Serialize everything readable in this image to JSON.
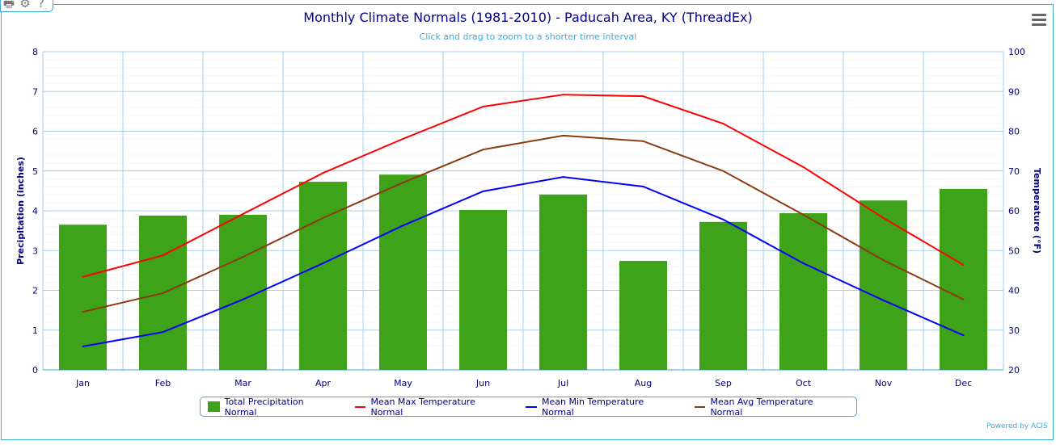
{
  "toolbar": {
    "icons": [
      "printer-icon",
      "gear-icon",
      "help-icon"
    ],
    "print": "🖶",
    "settings": "⚙",
    "help": "?"
  },
  "credit": "Powered by ACIS",
  "colors": {
    "precip": "#3fa31a",
    "max": "#ff0000",
    "min": "#0000ff",
    "avg": "#8b3a0f",
    "axis_text": "#000080",
    "grid": "#a6cfe8",
    "accent": "#3fa9de"
  },
  "chart_data": {
    "type": "bar+line",
    "title": "Monthly Climate Normals (1981-2010) - Paducah Area, KY (ThreadEx)",
    "subtitle": "Click and drag to zoom to a shorter time interval",
    "categories": [
      "Jan",
      "Feb",
      "Mar",
      "Apr",
      "May",
      "Jun",
      "Jul",
      "Aug",
      "Sep",
      "Oct",
      "Nov",
      "Dec"
    ],
    "y_left": {
      "label": "Precipitation (inches)",
      "range": [
        0,
        8
      ],
      "ticks": [
        "0",
        "1",
        "2",
        "3",
        "4",
        "5",
        "6",
        "7",
        "8"
      ]
    },
    "y_right": {
      "label": "Temperature (°F)",
      "range": [
        20,
        100
      ],
      "ticks": [
        "20",
        "30",
        "40",
        "50",
        "60",
        "70",
        "80",
        "90",
        "100"
      ]
    },
    "grid": true,
    "legend_placement": "bottom",
    "series": [
      {
        "name": "Total Precipitation Normal",
        "type": "bar",
        "axis": "left",
        "values": [
          3.65,
          3.88,
          3.9,
          4.73,
          4.91,
          4.02,
          4.41,
          2.74,
          3.72,
          3.94,
          4.26,
          4.55
        ]
      },
      {
        "name": "Mean Max Temperature Normal",
        "type": "line",
        "axis": "right",
        "values": [
          43.4,
          48.8,
          59.2,
          69.5,
          78.1,
          86.2,
          89.2,
          88.8,
          81.9,
          71.0,
          58.2,
          46.4
        ]
      },
      {
        "name": "Mean Min Temperature Normal",
        "type": "line",
        "axis": "right",
        "values": [
          25.9,
          29.5,
          37.7,
          46.8,
          56.3,
          64.9,
          68.5,
          66.1,
          57.8,
          46.8,
          37.5,
          28.7
        ]
      },
      {
        "name": "Mean Avg Temperature Normal",
        "type": "line",
        "axis": "right",
        "values": [
          34.6,
          39.3,
          48.4,
          58.2,
          67.1,
          75.4,
          78.9,
          77.5,
          70.0,
          59.0,
          47.6,
          37.7
        ]
      }
    ]
  }
}
